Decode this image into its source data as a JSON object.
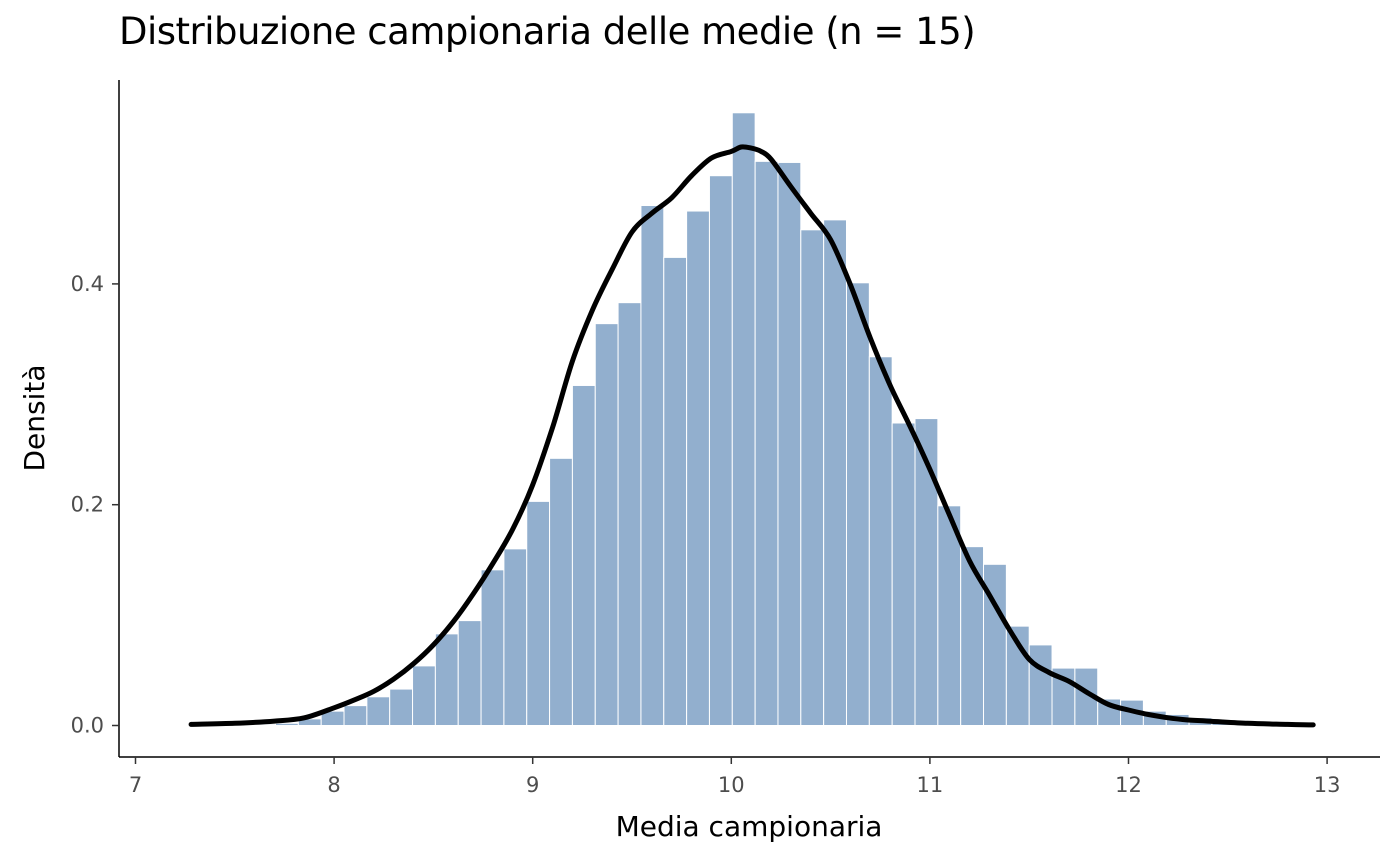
{
  "chart_data": {
    "type": "bar",
    "title": "Distribuzione campionaria delle medie (n = 15)",
    "xlabel": "Media campionaria",
    "ylabel": "Densità",
    "xlim": [
      7,
      13
    ],
    "ylim": [
      0,
      0.55
    ],
    "x_ticks": [
      7,
      8,
      9,
      10,
      11,
      12,
      13
    ],
    "x_tick_labels": [
      "7",
      "8",
      "9",
      "10",
      "11",
      "12",
      "13"
    ],
    "y_ticks": [
      0.0,
      0.2,
      0.4
    ],
    "y_tick_labels": [
      "0.0",
      "0.2",
      "0.4"
    ],
    "grid": false,
    "legend": "none",
    "colors": {
      "bars": "#92AFCE",
      "bar_border": "#FFFFFF",
      "density": "#000000",
      "axis": "#000000",
      "tick_text": "#4D4D4D"
    },
    "histogram": {
      "bin_width": 0.115,
      "bin_starts": [
        7.59,
        7.705,
        7.82,
        7.935,
        8.05,
        8.165,
        8.28,
        8.395,
        8.51,
        8.625,
        8.74,
        8.855,
        8.97,
        9.085,
        9.2,
        9.315,
        9.43,
        9.545,
        9.66,
        9.775,
        9.89,
        10.005,
        10.12,
        10.235,
        10.35,
        10.465,
        10.58,
        10.695,
        10.81,
        10.925,
        11.04,
        11.155,
        11.27,
        11.385,
        11.5,
        11.615,
        11.73,
        11.845,
        11.96,
        12.075,
        12.19,
        12.305,
        12.42,
        12.535,
        12.65,
        12.765,
        12.88,
        12.995
      ],
      "densities": [
        0.001,
        0.002,
        0.006,
        0.013,
        0.018,
        0.026,
        0.033,
        0.054,
        0.083,
        0.095,
        0.141,
        0.16,
        0.203,
        0.242,
        0.308,
        0.364,
        0.383,
        0.471,
        0.424,
        0.466,
        0.498,
        0.555,
        0.511,
        0.51,
        0.449,
        0.458,
        0.401,
        0.334,
        0.274,
        0.278,
        0.199,
        0.162,
        0.146,
        0.09,
        0.073,
        0.052,
        0.052,
        0.024,
        0.023,
        0.013,
        0.01,
        0.007,
        0.004,
        0.003,
        0.001,
        0.001,
        0.0005,
        0.0003
      ]
    },
    "density_curve": {
      "name": "densità",
      "x": [
        7.28,
        7.5,
        7.7,
        7.85,
        8.0,
        8.1,
        8.2,
        8.3,
        8.4,
        8.5,
        8.6,
        8.7,
        8.8,
        8.9,
        9.0,
        9.1,
        9.2,
        9.3,
        9.4,
        9.5,
        9.6,
        9.7,
        9.8,
        9.9,
        10.0,
        10.05,
        10.1,
        10.15,
        10.2,
        10.3,
        10.4,
        10.5,
        10.6,
        10.7,
        10.8,
        10.9,
        11.0,
        11.1,
        11.2,
        11.3,
        11.4,
        11.5,
        11.6,
        11.7,
        11.8,
        11.9,
        12.0,
        12.1,
        12.2,
        12.3,
        12.4,
        12.6,
        12.8,
        12.93
      ],
      "y": [
        0.001,
        0.002,
        0.004,
        0.007,
        0.016,
        0.023,
        0.031,
        0.042,
        0.056,
        0.073,
        0.094,
        0.119,
        0.147,
        0.178,
        0.218,
        0.27,
        0.33,
        0.376,
        0.413,
        0.447,
        0.464,
        0.478,
        0.498,
        0.514,
        0.52,
        0.524,
        0.523,
        0.52,
        0.513,
        0.488,
        0.464,
        0.44,
        0.399,
        0.351,
        0.308,
        0.271,
        0.232,
        0.19,
        0.149,
        0.118,
        0.087,
        0.06,
        0.048,
        0.04,
        0.029,
        0.019,
        0.014,
        0.01,
        0.007,
        0.005,
        0.004,
        0.002,
        0.001,
        0.0005
      ]
    }
  }
}
